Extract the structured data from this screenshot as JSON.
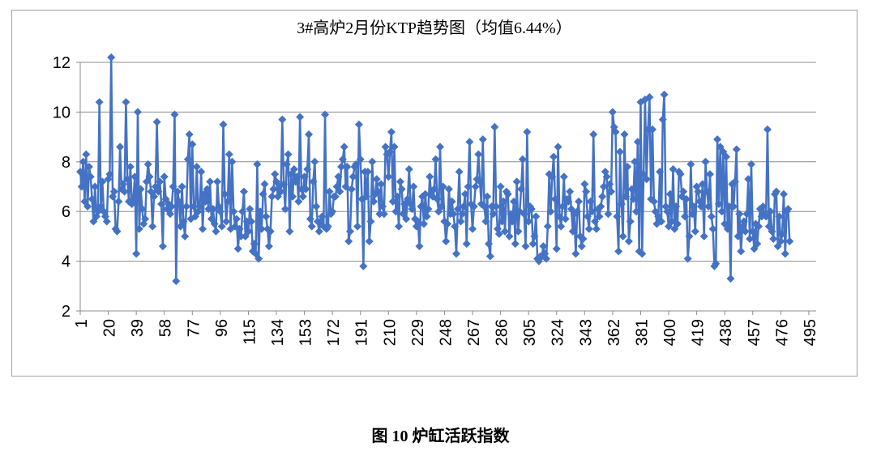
{
  "chart_data": {
    "type": "line",
    "title": "3#高炉2月份KTP趋势图（均值6.44%）",
    "xlabel": "",
    "ylabel": "",
    "ylim": [
      2,
      12
    ],
    "yticks": [
      "2",
      "4",
      "6",
      "8",
      "10",
      "12"
    ],
    "x_tick_labels": [
      "1",
      "20",
      "39",
      "58",
      "77",
      "96",
      "115",
      "134",
      "153",
      "172",
      "191",
      "210",
      "229",
      "248",
      "267",
      "286",
      "305",
      "324",
      "343",
      "362",
      "381",
      "400",
      "419",
      "438",
      "457",
      "476",
      "495"
    ],
    "x_range": [
      1,
      500
    ],
    "grid": "horizontal",
    "series_color": "#4472C4",
    "series": [
      {
        "name": "KTP",
        "values": [
          7.6,
          7.0,
          8.0,
          6.4,
          8.3,
          6.2,
          7.8,
          7.4,
          6.5,
          5.6,
          7.0,
          5.8,
          6.0,
          10.4,
          6.2,
          7.2,
          6.0,
          5.8,
          5.6,
          7.3,
          7.5,
          12.2,
          6.6,
          6.8,
          5.3,
          5.2,
          6.4,
          8.6,
          6.9,
          7.1,
          6.8,
          10.4,
          7.3,
          6.4,
          7.8,
          6.3,
          6.5,
          7.4,
          4.3,
          10.0,
          5.3,
          6.9,
          6.1,
          5.5,
          5.7,
          7.2,
          7.9,
          7.4,
          6.8,
          5.4,
          6.6,
          7.0,
          9.6,
          6.8,
          7.2,
          6.3,
          4.6,
          7.4,
          6.5,
          6.1,
          6.3,
          5.9,
          6.2,
          7.0,
          9.9,
          3.2,
          6.8,
          6.4,
          5.4,
          7.0,
          5.6,
          5.0,
          6.2,
          8.1,
          9.1,
          5.7,
          8.7,
          6.2,
          5.8,
          7.8,
          6.0,
          6.2,
          7.6,
          5.3,
          6.7,
          6.4,
          6.9,
          6.1,
          7.2,
          5.7,
          6.1,
          5.5,
          5.2,
          7.2,
          6.2,
          6.0,
          5.4,
          9.5,
          6.7,
          5.6,
          6.4,
          8.3,
          5.3,
          8.0,
          6.0,
          5.4,
          5.7,
          4.5,
          5.3,
          5.0,
          6.0,
          6.8,
          5.0,
          5.6,
          5.2,
          6.1,
          5.6,
          4.4,
          4.7,
          4.3,
          7.9,
          4.1,
          6.0,
          5.3,
          6.7,
          7.1,
          5.8,
          5.3,
          4.6,
          5.2,
          6.6,
          6.9,
          7.5,
          7.2,
          6.6,
          7.0,
          6.8,
          9.7,
          7.1,
          6.1,
          7.9,
          8.3,
          5.2,
          7.5,
          6.6,
          7.7,
          7.2,
          7.4,
          6.4,
          9.8,
          6.9,
          6.6,
          7.4,
          6.9,
          7.7,
          9.1,
          5.7,
          5.4,
          7.2,
          8.0,
          6.2,
          5.6,
          5.2,
          5.6,
          5.8,
          5.4,
          9.9,
          5.3,
          5.4,
          6.8,
          5.9,
          6.0,
          6.6,
          6.6,
          7.0,
          7.4,
          6.8,
          7.8,
          8.1,
          8.6,
          7.0,
          7.8,
          4.8,
          5.2,
          6.9,
          7.4,
          7.8,
          7.9,
          5.4,
          9.5,
          8.1,
          6.5,
          3.8,
          7.6,
          6.6,
          7.6,
          4.8,
          5.6,
          8.0,
          6.4,
          6.7,
          7.3,
          6.8,
          5.9,
          7.1,
          6.2,
          5.9,
          8.6,
          8.3,
          7.4,
          8.4,
          9.2,
          6.4,
          8.6,
          6.0,
          6.6,
          5.4,
          7.2,
          6.9,
          5.9,
          6.3,
          5.7,
          6.5,
          7.7,
          6.3,
          6.1,
          7.0,
          5.7,
          5.4,
          5.6,
          4.6,
          6.2,
          6.6,
          5.5,
          6.7,
          5.8,
          6.1,
          7.4,
          6.7,
          6.6,
          6.9,
          8.1,
          6.5,
          6.0,
          8.6,
          6.2,
          7.0,
          5.6,
          4.8,
          5.5,
          6.9,
          5.9,
          6.4,
          5.9,
          5.4,
          4.3,
          6.1,
          7.6,
          5.6,
          5.9,
          6.2,
          6.7,
          4.7,
          7.0,
          8.8,
          6.3,
          5.3,
          6.2,
          7.0,
          7.3,
          8.3,
          7.2,
          6.3,
          8.9,
          6.2,
          5.6,
          6.6,
          4.7,
          4.2,
          6.2,
          5.9,
          9.4,
          6.2,
          5.3,
          5.1,
          7.0,
          5.6,
          6.4,
          5.2,
          6.8,
          6.7,
          5.0,
          5.9,
          5.6,
          6.4,
          4.7,
          7.2,
          5.2,
          6.0,
          6.9,
          8.1,
          5.9,
          4.6,
          9.2,
          5.6,
          6.2,
          6.1,
          4.7,
          5.0,
          5.8,
          4.1,
          4.0,
          4.2,
          4.2,
          4.6,
          4.3,
          4.1,
          5.4,
          7.5,
          6.0,
          7.4,
          8.2,
          6.5,
          4.5,
          8.6,
          5.8,
          5.4,
          6.2,
          7.4,
          5.7,
          6.5,
          6.4,
          6.8,
          6.1,
          5.2,
          5.9,
          4.3,
          6.0,
          6.4,
          5.0,
          4.6,
          4.9,
          7.1,
          6.8,
          5.8,
          5.3,
          6.4,
          6.0,
          9.1,
          5.6,
          5.3,
          6.1,
          5.8,
          6.2,
          6.6,
          7.0,
          7.6,
          7.4,
          5.9,
          7.1,
          6.8,
          10.0,
          9.4,
          9.2,
          5.8,
          4.4,
          8.4,
          6.3,
          5.0,
          9.1,
          6.6,
          7.8,
          4.8,
          5.6,
          6.9,
          6.5,
          8.0,
          6.0,
          8.8,
          4.4,
          10.4,
          4.3,
          7.5,
          10.5,
          7.3,
          9.3,
          10.6,
          6.5,
          9.3,
          6.4,
          6.0,
          5.5,
          5.8,
          7.6,
          5.6,
          9.7,
          10.7,
          6.2,
          6.0,
          5.4,
          6.7,
          5.6,
          7.7,
          5.3,
          6.2,
          5.5,
          7.6,
          7.5,
          6.6,
          6.8,
          5.8,
          6.5,
          4.1,
          5.0,
          7.9,
          5.9,
          6.2,
          5.2,
          7.0,
          6.8,
          6.4,
          6.2,
          7.1,
          5.0,
          8.0,
          6.8,
          6.2,
          7.5,
          5.8,
          5.3,
          3.8,
          3.9,
          8.9,
          6.3,
          8.6,
          6.0,
          8.4,
          5.5,
          8.2,
          5.3,
          6.2,
          3.3,
          7.1,
          6.2,
          7.2,
          8.5,
          5.0,
          5.9,
          4.4,
          5.4,
          5.6,
          5.2,
          5.9,
          7.3,
          4.9,
          7.9,
          5.2,
          4.5,
          5.5,
          4.7,
          5.4,
          6.1,
          5.8,
          6.2,
          5.9,
          5.8,
          9.3,
          5.4,
          6.0,
          5.2,
          4.9,
          6.7,
          6.8,
          4.6,
          5.8,
          4.8,
          5.1,
          6.7,
          4.3,
          6.0,
          6.1,
          4.8
        ]
      }
    ]
  },
  "caption": "图 10 炉缸活跃指数"
}
